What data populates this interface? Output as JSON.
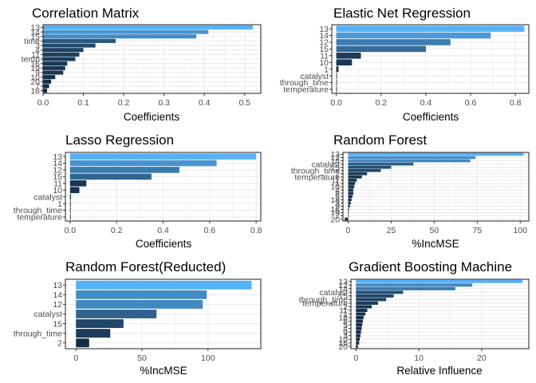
{
  "chart_data": [
    {
      "type": "bar",
      "orientation": "horizontal",
      "title": "Correlation Matrix",
      "xlabel": "Coefficients",
      "ylabel": "",
      "xlim": [
        0,
        0.54
      ],
      "xticks": [
        0.0,
        0.1,
        0.2,
        0.3,
        0.4,
        0.5
      ],
      "xtick_labels": [
        "0.0",
        "0.1",
        "0.2",
        "0.3",
        "0.4",
        "0.5"
      ],
      "categories": [
        "13",
        "14",
        "15",
        "time",
        "3",
        "4",
        "11",
        "temp",
        "16",
        "19",
        "9",
        "10",
        "20",
        "7",
        "18"
      ],
      "values": [
        0.52,
        0.41,
        0.38,
        0.18,
        0.13,
        0.1,
        0.09,
        0.08,
        0.06,
        0.055,
        0.05,
        0.03,
        0.02,
        0.015,
        0.01
      ],
      "grid": true
    },
    {
      "type": "bar",
      "orientation": "horizontal",
      "title": "Elastic Net Regression",
      "xlabel": "Coefficients",
      "ylabel": "",
      "xlim": [
        -0.02,
        0.86
      ],
      "xticks": [
        0.0,
        0.2,
        0.4,
        0.6,
        0.8
      ],
      "xtick_labels": [
        "0.0",
        "0.2",
        "0.4",
        "0.6",
        "0.8"
      ],
      "categories": [
        "13",
        "14",
        "12",
        "15",
        "11",
        "10",
        "1",
        "catalyst",
        "through_time",
        "temperature"
      ],
      "values": [
        0.84,
        0.69,
        0.51,
        0.4,
        0.11,
        0.07,
        0.01,
        0.003,
        0.002,
        0.001
      ],
      "grid": true
    },
    {
      "type": "bar",
      "orientation": "horizontal",
      "title": "Lasso Regression",
      "xlabel": "Coefficients",
      "ylabel": "",
      "xlim": [
        -0.02,
        0.82
      ],
      "xticks": [
        0.0,
        0.2,
        0.4,
        0.6,
        0.8
      ],
      "xtick_labels": [
        "0.0",
        "0.2",
        "0.4",
        "0.6",
        "0.8"
      ],
      "categories": [
        "13",
        "14",
        "12",
        "15",
        "11",
        "10",
        "catalyst",
        "1",
        "through_time",
        "temperature"
      ],
      "values": [
        0.8,
        0.63,
        0.47,
        0.35,
        0.07,
        0.04,
        0.004,
        0.003,
        0.002,
        0.001
      ],
      "grid": true
    },
    {
      "type": "bar",
      "orientation": "horizontal",
      "title": "Random Forest",
      "xlabel": "%IncMSE",
      "ylabel": "",
      "xlim": [
        -3,
        105
      ],
      "xticks": [
        0,
        25,
        50,
        75,
        100
      ],
      "xtick_labels": [
        "0",
        "25",
        "50",
        "75",
        "100"
      ],
      "categories": [
        "13",
        "12",
        "14",
        "catalyst",
        "15",
        "through_time",
        "2",
        "temperature",
        "11",
        "1",
        "10",
        "4",
        "8",
        "5",
        "18",
        "3",
        "9",
        "16",
        "19",
        "7",
        "20"
      ],
      "values": [
        102,
        74,
        71,
        38,
        25,
        19,
        11,
        8,
        5,
        4,
        3.5,
        3,
        3,
        2.5,
        2,
        1.5,
        1,
        0.5,
        0.3,
        0.2,
        -2
      ],
      "grid": true
    },
    {
      "type": "bar",
      "orientation": "horizontal",
      "title": "Random Forest(Reducted)",
      "xlabel": "%IncMSE",
      "ylabel": "",
      "xlim": [
        -8,
        140
      ],
      "xticks": [
        0,
        50,
        100
      ],
      "xtick_labels": [
        "0",
        "50",
        "100"
      ],
      "categories": [
        "13",
        "14",
        "12",
        "catalyst",
        "15",
        "through_time",
        "2"
      ],
      "values": [
        133,
        99,
        96,
        61,
        36,
        26,
        10
      ],
      "grid": true
    },
    {
      "type": "bar",
      "orientation": "horizontal",
      "title": "Gradient Boosting Machine",
      "xlabel": "Relative Influence",
      "ylabel": "",
      "xlim": [
        -0.8,
        27.5
      ],
      "xticks": [
        0,
        10,
        20
      ],
      "xtick_labels": [
        "0",
        "10",
        "20"
      ],
      "categories": [
        "13",
        "12",
        "14",
        "catalyst",
        "15",
        "through_time",
        "temperature",
        "2",
        "11",
        "1",
        "18",
        "8",
        "5",
        "4",
        "9",
        "3",
        "10",
        "16",
        "20"
      ],
      "values": [
        26.5,
        18.5,
        15.8,
        7.5,
        6.0,
        4.8,
        3.5,
        2.5,
        1.8,
        1.5,
        1.2,
        1.1,
        1.0,
        0.9,
        0.8,
        0.7,
        0.6,
        0.5,
        0.3
      ],
      "grid": true
    }
  ],
  "colors": {
    "bar_high": "#56B1F7",
    "bar_low": "#132B43",
    "panel_background": "#ffffff",
    "panel_border": "#333333",
    "grid": "#ebebeb"
  }
}
